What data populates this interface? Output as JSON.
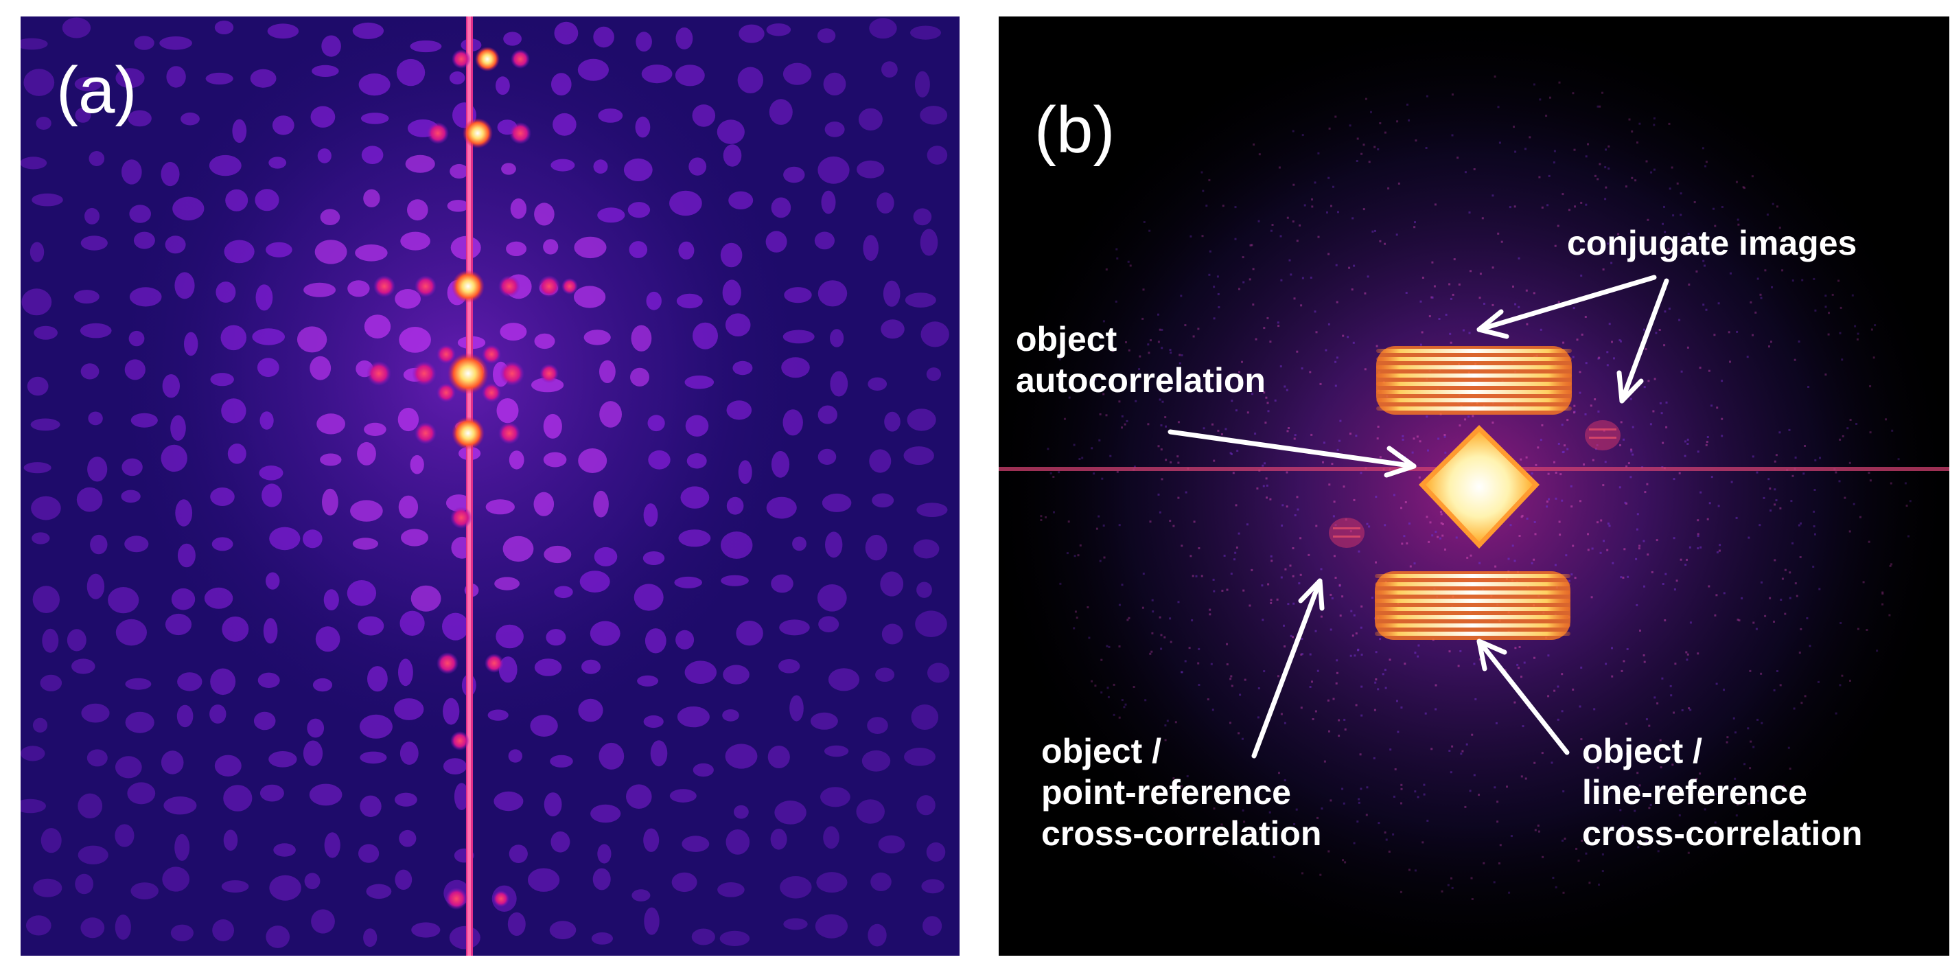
{
  "panels": {
    "a": {
      "letter": "(a)"
    },
    "b": {
      "letter": "(b)",
      "labels": {
        "conjugate": "conjugate images",
        "autocorrelation": "object\nautocorrelation",
        "point_ref": "object /\npoint-reference\ncross-correlation",
        "line_ref": "object /\nline-reference\ncross-correlation"
      }
    }
  },
  "colors": {
    "panel_a_background": "#1e0b6a",
    "panel_b_background": "#000000",
    "speckle": "#8a1ee0",
    "hot_spot": "#ffe070",
    "annotation": "#ffffff"
  }
}
